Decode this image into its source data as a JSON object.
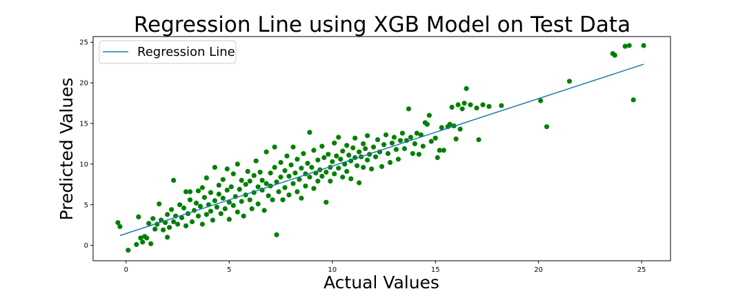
{
  "chart_data": {
    "type": "scatter",
    "title": "Regression Line using XGB Model on Test Data",
    "xlabel": "Actual Values",
    "ylabel": "Predicted Values",
    "xlim": [
      -1.6,
      26.4
    ],
    "ylim": [
      -1.9,
      25.7
    ],
    "xticks": [
      0,
      5,
      10,
      15,
      20,
      25
    ],
    "yticks": [
      0,
      5,
      10,
      15,
      20,
      25
    ],
    "grid": false,
    "legend": {
      "position": "top-left",
      "entries": [
        "Regression Line"
      ]
    },
    "colors": {
      "points": "#008000",
      "line": "#1f77b4"
    },
    "regression_line": {
      "name": "Regression Line",
      "x": [
        -0.3,
        25.1
      ],
      "y": [
        1.2,
        22.3
      ]
    },
    "points": [
      [
        -0.4,
        2.8
      ],
      [
        -0.3,
        2.3
      ],
      [
        0.1,
        -0.6
      ],
      [
        0.5,
        0.1
      ],
      [
        0.6,
        3.5
      ],
      [
        0.7,
        0.9
      ],
      [
        0.8,
        0.4
      ],
      [
        0.9,
        1.1
      ],
      [
        1.0,
        0.9
      ],
      [
        1.1,
        2.7
      ],
      [
        1.2,
        0.2
      ],
      [
        1.3,
        3.3
      ],
      [
        1.4,
        2.0
      ],
      [
        1.5,
        2.6
      ],
      [
        1.6,
        5.1
      ],
      [
        1.7,
        3.1
      ],
      [
        1.8,
        1.9
      ],
      [
        1.9,
        2.8
      ],
      [
        2.0,
        1.0
      ],
      [
        2.0,
        3.8
      ],
      [
        2.1,
        2.2
      ],
      [
        2.2,
        4.4
      ],
      [
        2.3,
        2.9
      ],
      [
        2.3,
        8.0
      ],
      [
        2.4,
        3.6
      ],
      [
        2.5,
        2.6
      ],
      [
        2.6,
        5.0
      ],
      [
        2.7,
        3.4
      ],
      [
        2.8,
        4.6
      ],
      [
        2.9,
        2.4
      ],
      [
        2.9,
        6.6
      ],
      [
        3.0,
        3.9
      ],
      [
        3.1,
        5.6
      ],
      [
        3.1,
        6.6
      ],
      [
        3.2,
        2.9
      ],
      [
        3.3,
        4.3
      ],
      [
        3.4,
        5.2
      ],
      [
        3.5,
        3.6
      ],
      [
        3.5,
        6.7
      ],
      [
        3.6,
        4.8
      ],
      [
        3.7,
        2.6
      ],
      [
        3.7,
        7.1
      ],
      [
        3.8,
        5.9
      ],
      [
        3.9,
        3.8
      ],
      [
        3.9,
        8.3
      ],
      [
        4.0,
        5.0
      ],
      [
        4.1,
        4.2
      ],
      [
        4.1,
        6.5
      ],
      [
        4.2,
        3.1
      ],
      [
        4.3,
        5.5
      ],
      [
        4.3,
        9.6
      ],
      [
        4.4,
        4.7
      ],
      [
        4.5,
        6.3
      ],
      [
        4.5,
        7.4
      ],
      [
        4.6,
        3.9
      ],
      [
        4.7,
        5.8
      ],
      [
        4.7,
        8.1
      ],
      [
        4.8,
        4.5
      ],
      [
        4.9,
        6.8
      ],
      [
        4.9,
        9.4
      ],
      [
        5.0,
        5.3
      ],
      [
        5.0,
        3.2
      ],
      [
        5.1,
        7.2
      ],
      [
        5.2,
        4.9
      ],
      [
        5.2,
        8.8
      ],
      [
        5.3,
        6.0
      ],
      [
        5.4,
        4.1
      ],
      [
        5.4,
        10.0
      ],
      [
        5.5,
        6.9
      ],
      [
        5.6,
        5.4
      ],
      [
        5.6,
        8.0
      ],
      [
        5.7,
        3.6
      ],
      [
        5.8,
        7.5
      ],
      [
        5.8,
        6.2
      ],
      [
        5.9,
        9.1
      ],
      [
        6.0,
        5.6
      ],
      [
        6.0,
        7.9
      ],
      [
        6.1,
        4.5
      ],
      [
        6.2,
        8.6
      ],
      [
        6.2,
        6.5
      ],
      [
        6.3,
        10.4
      ],
      [
        6.4,
        7.2
      ],
      [
        6.4,
        5.1
      ],
      [
        6.5,
        9.0
      ],
      [
        6.6,
        6.8
      ],
      [
        6.6,
        8.0
      ],
      [
        6.7,
        4.3
      ],
      [
        6.8,
        7.6
      ],
      [
        6.8,
        11.5
      ],
      [
        6.9,
        6.1
      ],
      [
        7.0,
        8.9
      ],
      [
        7.0,
        7.3
      ],
      [
        7.1,
        5.6
      ],
      [
        7.2,
        9.6
      ],
      [
        7.2,
        12.1
      ],
      [
        7.3,
        7.8
      ],
      [
        7.3,
        1.3
      ],
      [
        7.4,
        6.6
      ],
      [
        7.5,
        10.2
      ],
      [
        7.5,
        8.4
      ],
      [
        7.6,
        5.6
      ],
      [
        7.7,
        9.2
      ],
      [
        7.7,
        7.1
      ],
      [
        7.8,
        11.0
      ],
      [
        7.9,
        8.5
      ],
      [
        7.9,
        6.2
      ],
      [
        8.0,
        9.9
      ],
      [
        8.1,
        7.6
      ],
      [
        8.1,
        12.1
      ],
      [
        8.2,
        8.9
      ],
      [
        8.3,
        6.6
      ],
      [
        8.3,
        10.6
      ],
      [
        8.4,
        8.1
      ],
      [
        8.5,
        9.5
      ],
      [
        8.5,
        5.8
      ],
      [
        8.6,
        11.3
      ],
      [
        8.7,
        8.8
      ],
      [
        8.7,
        7.3
      ],
      [
        8.8,
        10.1
      ],
      [
        8.9,
        8.4
      ],
      [
        8.9,
        13.9
      ],
      [
        9.0,
        9.6
      ],
      [
        9.1,
        7.0
      ],
      [
        9.1,
        11.7
      ],
      [
        9.2,
        8.9
      ],
      [
        9.3,
        10.5
      ],
      [
        9.3,
        7.9
      ],
      [
        9.4,
        9.3
      ],
      [
        9.5,
        12.2
      ],
      [
        9.5,
        8.5
      ],
      [
        9.6,
        10.8
      ],
      [
        9.7,
        9.0
      ],
      [
        9.7,
        5.3
      ],
      [
        9.8,
        11.2
      ],
      [
        9.9,
        9.6
      ],
      [
        9.9,
        7.9
      ],
      [
        10.0,
        10.3
      ],
      [
        10.1,
        12.6
      ],
      [
        10.1,
        8.8
      ],
      [
        10.2,
        11.0
      ],
      [
        10.3,
        9.5
      ],
      [
        10.3,
        13.3
      ],
      [
        10.4,
        10.6
      ],
      [
        10.5,
        8.4
      ],
      [
        10.5,
        11.6
      ],
      [
        10.6,
        10.0
      ],
      [
        10.7,
        12.3
      ],
      [
        10.7,
        9.1
      ],
      [
        10.8,
        11.1
      ],
      [
        10.9,
        10.4
      ],
      [
        10.9,
        8.2
      ],
      [
        11.0,
        12.0
      ],
      [
        11.1,
        10.8
      ],
      [
        11.1,
        13.2
      ],
      [
        11.2,
        9.8
      ],
      [
        11.3,
        11.5
      ],
      [
        11.3,
        7.7
      ],
      [
        11.4,
        10.9
      ],
      [
        11.5,
        12.5
      ],
      [
        11.5,
        9.6
      ],
      [
        11.6,
        11.9
      ],
      [
        11.7,
        10.5
      ],
      [
        11.7,
        13.5
      ],
      [
        11.8,
        11.2
      ],
      [
        11.9,
        9.4
      ],
      [
        12.0,
        12.1
      ],
      [
        12.1,
        10.9
      ],
      [
        12.2,
        13.0
      ],
      [
        12.3,
        11.5
      ],
      [
        12.4,
        9.7
      ],
      [
        12.5,
        12.4
      ],
      [
        12.6,
        13.6
      ],
      [
        12.7,
        11.3
      ],
      [
        12.8,
        10.2
      ],
      [
        12.9,
        12.6
      ],
      [
        13.0,
        13.3
      ],
      [
        13.1,
        11.8
      ],
      [
        13.2,
        10.6
      ],
      [
        13.3,
        12.9
      ],
      [
        13.4,
        13.8
      ],
      [
        13.5,
        11.9
      ],
      [
        13.6,
        12.9
      ],
      [
        13.7,
        16.8
      ],
      [
        13.8,
        13.3
      ],
      [
        13.9,
        11.3
      ],
      [
        14.0,
        12.5
      ],
      [
        14.1,
        13.8
      ],
      [
        14.2,
        11.2
      ],
      [
        14.3,
        13.6
      ],
      [
        14.4,
        12.2
      ],
      [
        14.5,
        15.1
      ],
      [
        14.6,
        14.9
      ],
      [
        14.7,
        16.0
      ],
      [
        14.8,
        12.8
      ],
      [
        15.0,
        13.2
      ],
      [
        15.1,
        10.8
      ],
      [
        15.2,
        11.7
      ],
      [
        15.3,
        14.5
      ],
      [
        15.4,
        11.7
      ],
      [
        15.6,
        14.6
      ],
      [
        15.7,
        14.9
      ],
      [
        15.8,
        17.0
      ],
      [
        15.9,
        14.7
      ],
      [
        16.0,
        13.1
      ],
      [
        16.1,
        17.3
      ],
      [
        16.2,
        14.3
      ],
      [
        16.3,
        16.8
      ],
      [
        16.4,
        17.5
      ],
      [
        16.5,
        19.3
      ],
      [
        16.7,
        17.3
      ],
      [
        17.0,
        16.9
      ],
      [
        17.1,
        13.0
      ],
      [
        17.3,
        17.3
      ],
      [
        17.6,
        17.1
      ],
      [
        18.2,
        17.2
      ],
      [
        20.1,
        17.8
      ],
      [
        20.4,
        14.6
      ],
      [
        21.5,
        20.2
      ],
      [
        23.6,
        23.6
      ],
      [
        23.7,
        23.4
      ],
      [
        24.2,
        24.5
      ],
      [
        24.4,
        24.6
      ],
      [
        24.6,
        17.9
      ],
      [
        25.1,
        24.6
      ]
    ]
  }
}
